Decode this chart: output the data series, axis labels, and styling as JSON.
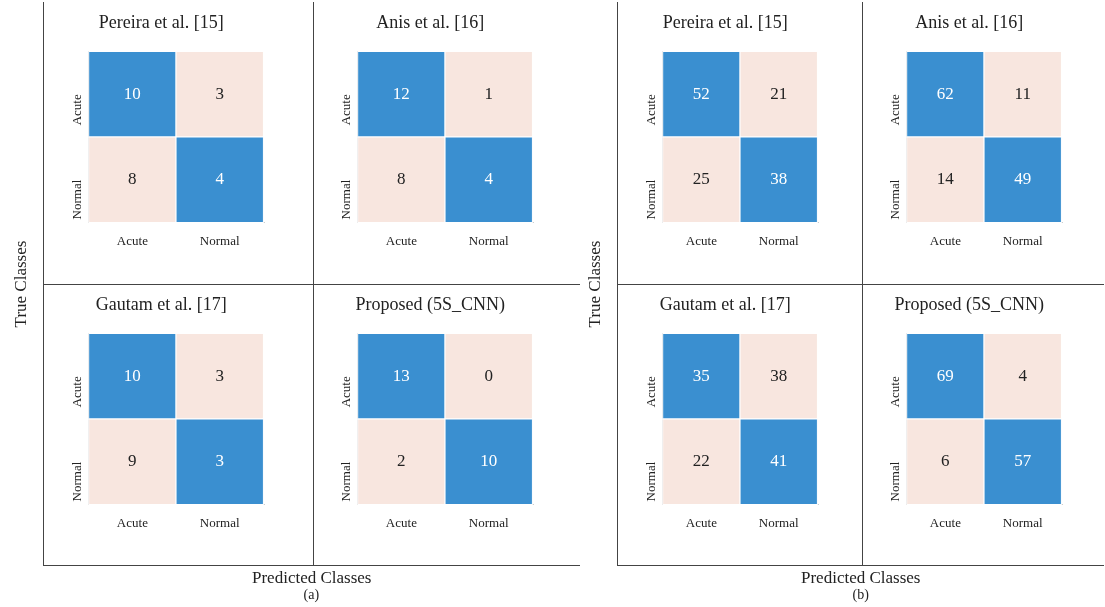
{
  "chart_data": [
    {
      "type": "heatmap",
      "title": "Pereira et al. [15]",
      "categories": [
        "Acute",
        "Normal"
      ],
      "y_categories": [
        "Acute",
        "Normal"
      ],
      "cells": [
        [
          10,
          3
        ],
        [
          8,
          4
        ]
      ],
      "colors": [
        [
          "#3a8fd0",
          "#f8e6df"
        ],
        [
          "#f8e6df",
          "#3a8fd0"
        ]
      ],
      "data_labels": true,
      "xlabel": "Predicted Classes",
      "ylabel": "True Classes",
      "annotations": [
        "(a)"
      ]
    },
    {
      "type": "heatmap",
      "title": "Anis et al. [16]",
      "categories": [
        "Acute",
        "Normal"
      ],
      "y_categories": [
        "Acute",
        "Normal"
      ],
      "cells": [
        [
          12,
          1
        ],
        [
          8,
          4
        ]
      ],
      "colors": [
        [
          "#3a8fd0",
          "#f8e6df"
        ],
        [
          "#f8e6df",
          "#3a8fd0"
        ]
      ],
      "data_labels": true
    },
    {
      "type": "heatmap",
      "title": "Gautam et al. [17]",
      "categories": [
        "Acute",
        "Normal"
      ],
      "y_categories": [
        "Acute",
        "Normal"
      ],
      "cells": [
        [
          10,
          3
        ],
        [
          9,
          3
        ]
      ],
      "colors": [
        [
          "#3a8fd0",
          "#f8e6df"
        ],
        [
          "#f8e6df",
          "#3a8fd0"
        ]
      ],
      "data_labels": true
    },
    {
      "type": "heatmap",
      "title": "Proposed (5S_CNN)",
      "categories": [
        "Acute",
        "Normal"
      ],
      "y_categories": [
        "Acute",
        "Normal"
      ],
      "cells": [
        [
          13,
          0
        ],
        [
          2,
          10
        ]
      ],
      "colors": [
        [
          "#3a8fd0",
          "#f8e6df"
        ],
        [
          "#f8e6df",
          "#3a8fd0"
        ]
      ],
      "data_labels": true
    },
    {
      "type": "heatmap",
      "title": "Pereira et al. [15]",
      "categories": [
        "Acute",
        "Normal"
      ],
      "y_categories": [
        "Acute",
        "Normal"
      ],
      "cells": [
        [
          52,
          21
        ],
        [
          25,
          38
        ]
      ],
      "colors": [
        [
          "#3a8fd0",
          "#f8e6df"
        ],
        [
          "#f8e6df",
          "#3a8fd0"
        ]
      ],
      "data_labels": true,
      "xlabel": "Predicted Classes",
      "ylabel": "True Classes",
      "annotations": [
        "(b)"
      ]
    },
    {
      "type": "heatmap",
      "title": "Anis et al. [16]",
      "categories": [
        "Acute",
        "Normal"
      ],
      "y_categories": [
        "Acute",
        "Normal"
      ],
      "cells": [
        [
          62,
          11
        ],
        [
          14,
          49
        ]
      ],
      "colors": [
        [
          "#3a8fd0",
          "#f8e6df"
        ],
        [
          "#f8e6df",
          "#3a8fd0"
        ]
      ],
      "data_labels": true
    },
    {
      "type": "heatmap",
      "title": "Gautam et al. [17]",
      "categories": [
        "Acute",
        "Normal"
      ],
      "y_categories": [
        "Acute",
        "Normal"
      ],
      "cells": [
        [
          35,
          38
        ],
        [
          22,
          41
        ]
      ],
      "colors": [
        [
          "#3a8fd0",
          "#f8e6df"
        ],
        [
          "#f8e6df",
          "#3a8fd0"
        ]
      ],
      "data_labels": true
    },
    {
      "type": "heatmap",
      "title": "Proposed (5S_CNN)",
      "categories": [
        "Acute",
        "Normal"
      ],
      "y_categories": [
        "Acute",
        "Normal"
      ],
      "cells": [
        [
          69,
          4
        ],
        [
          6,
          57
        ]
      ],
      "colors": [
        [
          "#3a8fd0",
          "#f8e6df"
        ],
        [
          "#f8e6df",
          "#3a8fd0"
        ]
      ],
      "data_labels": true
    }
  ]
}
